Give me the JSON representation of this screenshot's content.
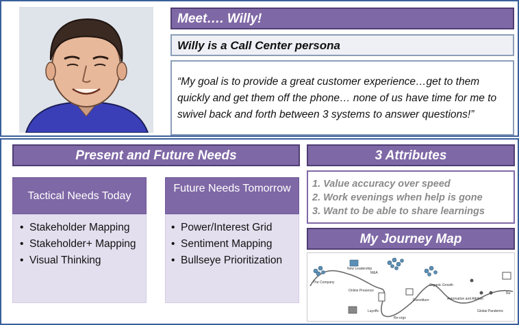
{
  "meet_title": "Meet…. Willy!",
  "persona_subtitle": "Willy is a Call Center persona",
  "quote": "“My goal is to provide a great customer experience…get to them quickly and get them off the phone… none of us have time for me to swivel back and forth between 3 systems to answer questions!”",
  "needs": {
    "title": "Present and Future Needs",
    "tactical": {
      "heading": "Tactical Needs Today",
      "items": [
        "Stakeholder Mapping",
        "Stakeholder+ Mapping",
        "Visual Thinking"
      ]
    },
    "future": {
      "heading": "Future Needs Tomorrow",
      "items": [
        "Power/Interest Grid",
        "Sentiment Mapping",
        "Bullseye Prioritization"
      ]
    }
  },
  "attributes": {
    "title": "3 Attributes",
    "items": [
      "1. Value accuracy over speed",
      "2. Work evenings when help is gone",
      "3. Want to be able to share learnings"
    ]
  },
  "journey": {
    "title": "My Journey Map",
    "labels": [
      "The Company",
      "New Leadership",
      "M&A",
      "Online Presence",
      "Layoffs",
      "Re-orgs",
      "Divestiture",
      "Organic Growth",
      "Automation and Attrition",
      "Global Pandemic",
      "Re"
    ]
  },
  "colors": {
    "accent_purple": "#7f68a6",
    "panel_lavender": "#e3dfee",
    "frame_blue": "#3a5f9a",
    "attribute_gray": "#8a8a8a"
  }
}
